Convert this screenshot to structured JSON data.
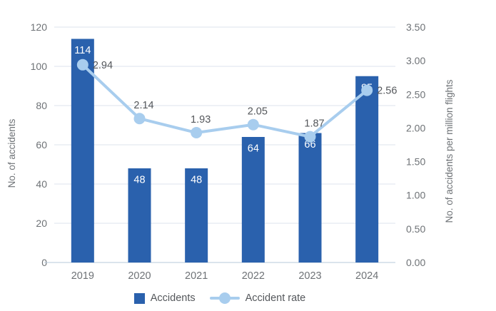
{
  "chart_data": {
    "type": "bar+line combo",
    "categories": [
      "2019",
      "2020",
      "2021",
      "2022",
      "2023",
      "2024"
    ],
    "series": [
      {
        "name": "Accidents",
        "type": "bar",
        "axis": "left",
        "values": [
          114,
          48,
          48,
          64,
          66,
          95
        ],
        "value_labels": [
          "114",
          "48",
          "48",
          "64",
          "66",
          "95"
        ]
      },
      {
        "name": "Accident rate",
        "type": "line",
        "axis": "right",
        "values": [
          2.94,
          2.14,
          1.93,
          2.05,
          1.87,
          2.56
        ],
        "point_labels": [
          "2.94",
          "2.14",
          "1.93",
          "2.05",
          "1.87",
          "2.56"
        ],
        "label_positions": [
          "right",
          "above",
          "above",
          "above",
          "above",
          "right"
        ]
      }
    ],
    "left_axis": {
      "label": "No. of accidents",
      "min": 0,
      "max": 120,
      "step": 20,
      "tick_labels": [
        "0",
        "20",
        "40",
        "60",
        "80",
        "100",
        "120"
      ]
    },
    "right_axis": {
      "label": "No. of accidents per million flights",
      "min": 0,
      "max": 3.5,
      "step": 0.5,
      "tick_labels": [
        "0.00",
        "0.50",
        "1.00",
        "1.50",
        "2.00",
        "2.50",
        "3.00",
        "3.50"
      ]
    },
    "grid": true,
    "title": "",
    "legend_position": "bottom",
    "legend": [
      {
        "label": "Accidents",
        "marker": "square"
      },
      {
        "label": "Accident rate",
        "marker": "line-dot"
      }
    ],
    "colors": {
      "bar": "#2a61ad",
      "line": "#a8cdee",
      "grid": "#dce3ed",
      "axis_line": "#b7c9da",
      "tick_text": "#6e7276",
      "data_label": "#54575b",
      "bar_label": "#ffffff",
      "background": "#ffffff"
    }
  }
}
